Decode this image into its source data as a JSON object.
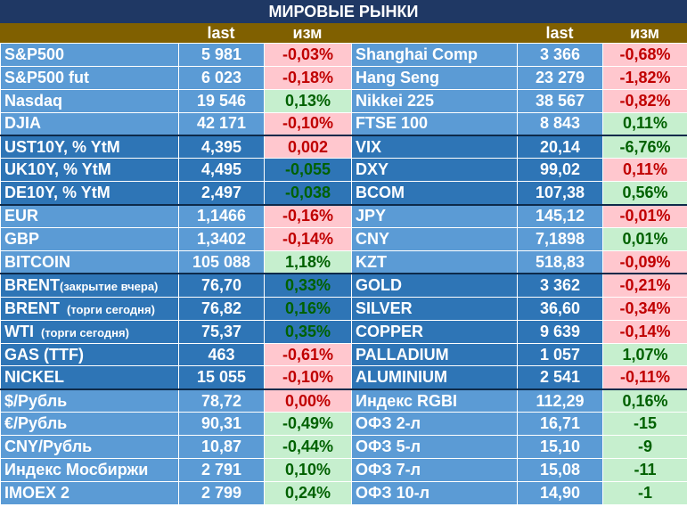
{
  "title": "МИРОВЫЕ РЫНКИ",
  "headers": {
    "last": "last",
    "chg": "изм"
  },
  "rows": [
    {
      "l_name": "S&P500",
      "l_sub": "",
      "l_last": "5 981",
      "l_chg": "-0,03%",
      "l_dir": "neg",
      "r_name": "Shanghai Comp",
      "r_last": "3 366",
      "r_chg": "-0,68%",
      "r_dir": "neg",
      "band": "lb"
    },
    {
      "l_name": "S&P500 fut",
      "l_sub": "",
      "l_last": "6 023",
      "l_chg": "-0,18%",
      "l_dir": "neg",
      "r_name": "Hang Seng",
      "r_last": "23 279",
      "r_chg": "-1,82%",
      "r_dir": "neg",
      "band": "lb"
    },
    {
      "l_name": "Nasdaq",
      "l_sub": "",
      "l_last": "19 546",
      "l_chg": "0,13%",
      "l_dir": "pos",
      "r_name": "Nikkei 225",
      "r_last": "38 567",
      "r_chg": "-0,82%",
      "r_dir": "neg",
      "band": "lb"
    },
    {
      "l_name": "DJIA",
      "l_sub": "",
      "l_last": "42 171",
      "l_chg": "-0,10%",
      "l_dir": "neg",
      "r_name": "FTSE 100",
      "r_last": "8 843",
      "r_chg": "0,11%",
      "r_dir": "pos",
      "band": "lb",
      "sep": true
    },
    {
      "l_name": "UST10Y, % YtM",
      "l_sub": "",
      "l_last": "4,395",
      "l_chg": "0,002",
      "l_dir": "neg",
      "r_name": "VIX",
      "r_last": "20,14",
      "r_chg": "-6,76%",
      "r_dir": "pos",
      "band": "db"
    },
    {
      "l_name": "UK10Y, % YtM",
      "l_sub": "",
      "l_last": "4,495",
      "l_chg": "-0,055",
      "l_dir": "neu",
      "r_name": "DXY",
      "r_last": "99,02",
      "r_chg": "0,11%",
      "r_dir": "neg",
      "band": "db"
    },
    {
      "l_name": "DE10Y, % YtM",
      "l_sub": "",
      "l_last": "2,497",
      "l_chg": "-0,038",
      "l_dir": "neu",
      "r_name": "BCOM",
      "r_last": "107,38",
      "r_chg": "0,56%",
      "r_dir": "pos",
      "band": "db",
      "sep": true
    },
    {
      "l_name": "EUR",
      "l_sub": "",
      "l_last": "1,1466",
      "l_chg": "-0,16%",
      "l_dir": "neg",
      "r_name": "JPY",
      "r_last": "145,12",
      "r_chg": "-0,01%",
      "r_dir": "neg",
      "band": "lb"
    },
    {
      "l_name": "GBP",
      "l_sub": "",
      "l_last": "1,3402",
      "l_chg": "-0,14%",
      "l_dir": "neg",
      "r_name": "CNY",
      "r_last": "7,1898",
      "r_chg": "0,01%",
      "r_dir": "pos",
      "band": "lb"
    },
    {
      "l_name": "BITCOIN",
      "l_sub": "",
      "l_last": "105 088",
      "l_chg": "1,18%",
      "l_dir": "pos",
      "r_name": "KZT",
      "r_last": "518,83",
      "r_chg": "-0,09%",
      "r_dir": "neg",
      "band": "lb",
      "sep": true
    },
    {
      "l_name": "BRENT",
      "l_sub": "(закрытие вчера)",
      "l_last": "76,70",
      "l_chg": "0,33%",
      "l_dir": "neu",
      "r_name": "GOLD",
      "r_last": "3 362",
      "r_chg": "-0,21%",
      "r_dir": "neg",
      "band": "db"
    },
    {
      "l_name": "BRENT",
      "l_sub": "(торги сегодня)",
      "l_last": "76,82",
      "l_chg": "0,16%",
      "l_dir": "neu",
      "r_name": "SILVER",
      "r_last": "36,60",
      "r_chg": "-0,34%",
      "r_dir": "neg",
      "band": "db"
    },
    {
      "l_name": "WTI",
      "l_sub": "(торги сегодня)",
      "l_last": "75,37",
      "l_chg": "0,35%",
      "l_dir": "neu",
      "r_name": "COPPER",
      "r_last": "9 639",
      "r_chg": "-0,14%",
      "r_dir": "neg",
      "band": "db"
    },
    {
      "l_name": "GAS (TTF)",
      "l_sub": "",
      "l_last": "463",
      "l_chg": "-0,61%",
      "l_dir": "neg",
      "r_name": "PALLADIUM",
      "r_last": "1 057",
      "r_chg": "1,07%",
      "r_dir": "pos",
      "band": "db"
    },
    {
      "l_name": "NICKEL",
      "l_sub": "",
      "l_last": "15 055",
      "l_chg": "-0,10%",
      "l_dir": "neg",
      "r_name": "ALUMINIUM",
      "r_last": "2 541",
      "r_chg": "-0,11%",
      "r_dir": "neg",
      "band": "db",
      "sep": true
    },
    {
      "l_name": "$/Рубль",
      "l_sub": "",
      "l_last": "78,72",
      "l_chg": "0,00%",
      "l_dir": "neg",
      "r_name": "Индекс RGBI",
      "r_last": "112,29",
      "r_chg": "0,16%",
      "r_dir": "pos",
      "band": "lb"
    },
    {
      "l_name": "€/Рубль",
      "l_sub": "",
      "l_last": "90,31",
      "l_chg": "-0,49%",
      "l_dir": "pos",
      "r_name": "ОФЗ 2-л",
      "r_last": "16,71",
      "r_chg": "-15",
      "r_dir": "pos",
      "band": "lb"
    },
    {
      "l_name": "CNY/Рубль",
      "l_sub": "",
      "l_last": "10,87",
      "l_chg": "-0,44%",
      "l_dir": "pos",
      "r_name": "ОФЗ 5-л",
      "r_last": "15,10",
      "r_chg": "-9",
      "r_dir": "pos",
      "band": "lb"
    },
    {
      "l_name": "Индекс Мосбиржи",
      "l_sub": "",
      "l_last": "2 791",
      "l_chg": "0,10%",
      "l_dir": "pos",
      "r_name": "ОФЗ 7-л",
      "r_last": "15,08",
      "r_chg": "-11",
      "r_dir": "pos",
      "band": "lb"
    },
    {
      "l_name": "IMOEX 2",
      "l_sub": "",
      "l_last": "2 799",
      "l_chg": "0,24%",
      "l_dir": "pos",
      "r_name": "ОФЗ 10-л",
      "r_last": "14,90",
      "r_chg": "-1",
      "r_dir": "pos",
      "band": "lb"
    }
  ]
}
